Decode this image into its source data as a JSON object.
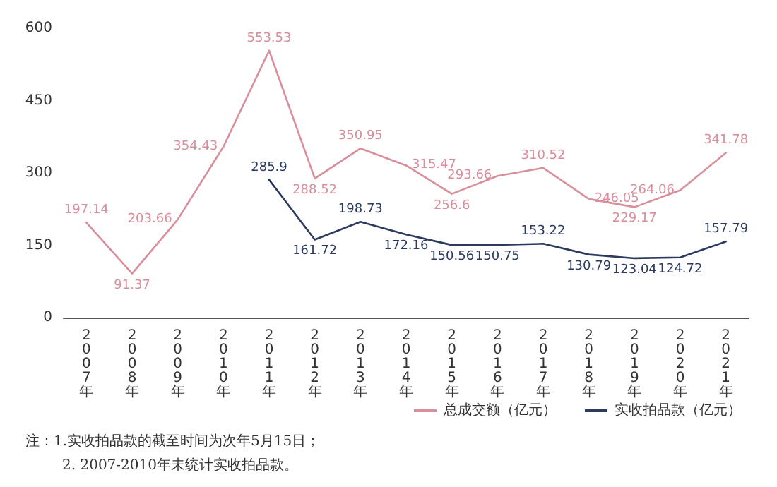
{
  "chart_data": {
    "type": "line",
    "categories": [
      "2007年",
      "2008年",
      "2009年",
      "2010年",
      "2011年",
      "2012年",
      "2013年",
      "2014年",
      "2015年",
      "2016年",
      "2017年",
      "2018年",
      "2019年",
      "2020年",
      "2021年"
    ],
    "series": [
      {
        "name": "总成交额（亿元）",
        "color": "#d98e9b",
        "values": [
          197.14,
          91.37,
          203.66,
          354.43,
          553.53,
          288.52,
          350.95,
          315.47,
          256.6,
          293.66,
          310.52,
          246.05,
          229.17,
          264.06,
          341.78
        ]
      },
      {
        "name": "实收拍品款（亿元）",
        "color": "#2b3a5e",
        "values": [
          null,
          null,
          null,
          null,
          285.9,
          161.72,
          198.73,
          172.16,
          150.56,
          150.75,
          153.22,
          130.79,
          123.04,
          124.72,
          157.79
        ]
      }
    ],
    "ylim": [
      0,
      600
    ],
    "yticks": [
      0,
      150,
      300,
      450,
      600
    ],
    "grid": false,
    "legend": "bottom right",
    "marker": "none",
    "line_style": "solid",
    "data_labels": true,
    "annotations": [
      "注：1.实收拍品款的截至时间为次年5月15日；",
      "2. 2007-2010年未统计实收拍品款。"
    ]
  }
}
